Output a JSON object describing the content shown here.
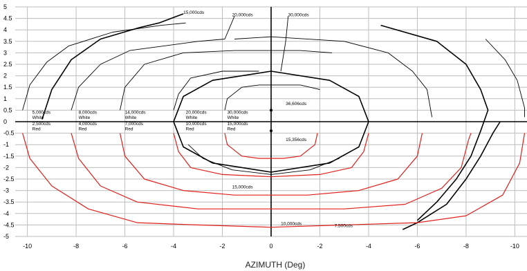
{
  "chart_data": {
    "type": "line",
    "xlabel": "AZIMUTH (Deg)",
    "xlim": [
      -10.5,
      10.5
    ],
    "ylim": [
      -5,
      5
    ],
    "x_ticks": [
      {
        "value": -10,
        "label": "-10"
      },
      {
        "value": -8,
        "label": "-8"
      },
      {
        "value": -6,
        "label": "-6"
      },
      {
        "value": -4,
        "label": "-4"
      },
      {
        "value": -2,
        "label": "-2"
      },
      {
        "value": 0,
        "label": "0"
      },
      {
        "value": 2,
        "label": "-2"
      },
      {
        "value": 4,
        "label": "-4"
      },
      {
        "value": 6,
        "label": "-6"
      },
      {
        "value": 8,
        "label": "-8"
      },
      {
        "value": 10,
        "label": "-10"
      }
    ],
    "y_ticks": [
      5,
      4.5,
      4,
      3.5,
      3,
      2.5,
      2,
      1.5,
      1,
      0.5,
      0,
      -0.5,
      -1,
      -1.5,
      -2,
      -2.5,
      -3,
      -3.5,
      -4,
      -4.5,
      -5
    ],
    "grid": true,
    "colors": {
      "white_series": "#000000",
      "red_series": "#e0201b",
      "grid": "#bdbdbd"
    },
    "series": [
      {
        "name": "5,000cds White",
        "color": "#000000",
        "points": [
          [
            -10.2,
            0.5
          ],
          [
            -9.9,
            1.6
          ],
          [
            -9.2,
            2.6
          ],
          [
            -8.3,
            3.3
          ],
          [
            -6.5,
            3.9
          ],
          [
            -4.5,
            4.2
          ],
          [
            -3.5,
            4.3
          ]
        ]
      },
      {
        "name": "15,000cds (white)",
        "color": "#000000",
        "points": [
          [
            -9.4,
            0.1
          ],
          [
            -9.0,
            1.4
          ],
          [
            -8.2,
            2.7
          ],
          [
            -7.0,
            3.6
          ],
          [
            -5.4,
            4.1
          ],
          [
            -4.6,
            4.3
          ],
          [
            -3.6,
            4.7
          ]
        ]
      },
      {
        "name": "8,000cds White",
        "color": "#000000",
        "points": [
          [
            -8.2,
            0.5
          ],
          [
            -7.9,
            1.5
          ],
          [
            -7.0,
            2.5
          ],
          [
            -5.8,
            3.1
          ],
          [
            -3.0,
            3.5
          ],
          [
            -1.9,
            3.6
          ],
          [
            -1.5,
            4.6
          ]
        ]
      },
      {
        "name": "14,000cds White",
        "color": "#000000",
        "points": [
          [
            -6.2,
            0.5
          ],
          [
            -6.0,
            1.5
          ],
          [
            -5.2,
            2.5
          ],
          [
            -3.6,
            3.0
          ],
          [
            -1.5,
            3.1
          ],
          [
            1.2,
            3.1
          ],
          [
            2.5,
            3.0
          ]
        ]
      },
      {
        "name": "20,000cds White",
        "color": "#000000",
        "points": [
          [
            -4.0,
            0.5
          ],
          [
            -3.8,
            1.2
          ],
          [
            -3.3,
            1.9
          ],
          [
            -2.0,
            2.2
          ],
          [
            -0.5,
            2.2
          ]
        ]
      },
      {
        "name": "30,000cds White",
        "color": "#000000",
        "points": [
          [
            -1.9,
            0.5
          ],
          [
            -1.8,
            1.0
          ],
          [
            -1.2,
            1.5
          ],
          [
            -0.5,
            1.6
          ],
          [
            0,
            1.6
          ],
          [
            1.2,
            1.6
          ],
          [
            2.0,
            1.4
          ]
        ]
      },
      {
        "name": "36,606cds",
        "color": "#000000",
        "points": [
          [
            -4.0,
            0
          ],
          [
            -3.6,
            1.1
          ],
          [
            -2.4,
            1.8
          ],
          [
            0,
            2.2
          ],
          [
            2.4,
            1.8
          ],
          [
            3.6,
            1.1
          ],
          [
            4.0,
            0
          ],
          [
            3.6,
            -1.1
          ],
          [
            2.4,
            -1.8
          ],
          [
            0,
            -2.2
          ],
          [
            -2.4,
            -1.8
          ],
          [
            -3.6,
            -1.1
          ],
          [
            -4.0,
            0
          ]
        ]
      },
      {
        "name": "30,000cds",
        "color": "#000000",
        "points": [
          [
            0.4,
            2.2
          ],
          [
            0.6,
            3.5
          ],
          [
            0.7,
            4.6
          ]
        ]
      },
      {
        "name": "20,000cds",
        "color": "#000000",
        "points": [
          [
            -1.5,
            3.6
          ],
          [
            0,
            3.7
          ],
          [
            3.0,
            3.5
          ],
          [
            4.8,
            3.0
          ],
          [
            5.8,
            2.2
          ],
          [
            6.4,
            1.4
          ],
          [
            6.6,
            0.2
          ]
        ]
      },
      {
        "name": "7,500cds",
        "color": "#000000",
        "points": [
          [
            8.8,
            3.6
          ],
          [
            9.6,
            2.7
          ],
          [
            10.1,
            1.8
          ],
          [
            10.4,
            0.6
          ],
          [
            10.4,
            0.2
          ]
        ]
      },
      {
        "name": "10,000cds",
        "color": "#000000",
        "points": [
          [
            4.5,
            4.2
          ],
          [
            6.8,
            3.5
          ],
          [
            8.0,
            2.5
          ],
          [
            8.6,
            1.4
          ],
          [
            8.9,
            0.5
          ],
          [
            8.6,
            -0.4
          ],
          [
            8.2,
            -1.5
          ],
          [
            7.6,
            -2.5
          ],
          [
            6.8,
            -3.5
          ],
          [
            6.0,
            -4.3
          ]
        ]
      },
      {
        "name": "7,500cds lower",
        "color": "#000000",
        "points": [
          [
            9.4,
            0
          ],
          [
            9.1,
            -0.5
          ],
          [
            8.6,
            -1.5
          ],
          [
            8.0,
            -2.5
          ],
          [
            7.2,
            -3.6
          ],
          [
            6.0,
            -4.4
          ],
          [
            5.4,
            -4.7
          ]
        ]
      },
      {
        "name": "15,000cds lower",
        "color": "#000000",
        "points": [
          [
            -3.4,
            -1.0
          ],
          [
            -2.8,
            -1.6
          ],
          [
            -1.6,
            -2.1
          ],
          [
            0,
            -2.3
          ],
          [
            1.6,
            -2.1
          ],
          [
            2.8,
            -1.6
          ]
        ]
      },
      {
        "name": "2,500cds Red",
        "color": "#e0201b",
        "points": [
          [
            -10.2,
            -0.5
          ],
          [
            -9.9,
            -1.6
          ],
          [
            -9.0,
            -2.8
          ],
          [
            -7.5,
            -3.8
          ],
          [
            -5.5,
            -4.4
          ],
          [
            -3.0,
            -4.5
          ],
          [
            0,
            -4.6
          ],
          [
            3.0,
            -4.5
          ],
          [
            6.0,
            -4.4
          ],
          [
            8.0,
            -4.1
          ],
          [
            9.5,
            -3.2
          ],
          [
            10.2,
            -1.8
          ],
          [
            10.4,
            -0.5
          ]
        ]
      },
      {
        "name": "4,000cds Red",
        "color": "#e0201b",
        "points": [
          [
            -8.2,
            -0.5
          ],
          [
            -7.9,
            -1.6
          ],
          [
            -7.0,
            -2.8
          ],
          [
            -5.5,
            -3.5
          ],
          [
            -3.0,
            -3.8
          ],
          [
            0,
            -3.8
          ],
          [
            3.0,
            -3.8
          ],
          [
            5.5,
            -3.6
          ],
          [
            7.0,
            -2.9
          ],
          [
            7.8,
            -2.0
          ],
          [
            8.1,
            -0.8
          ],
          [
            8.2,
            -0.5
          ]
        ]
      },
      {
        "name": "7,000cds Red",
        "color": "#e0201b",
        "points": [
          [
            -6.2,
            -0.5
          ],
          [
            -6.0,
            -1.5
          ],
          [
            -5.2,
            -2.5
          ],
          [
            -3.6,
            -3.0
          ],
          [
            -1.5,
            -3.2
          ],
          [
            1.5,
            -3.2
          ],
          [
            3.6,
            -3.0
          ],
          [
            5.2,
            -2.5
          ],
          [
            6.0,
            -1.5
          ],
          [
            6.2,
            -0.5
          ]
        ]
      },
      {
        "name": "10,000cds Red",
        "color": "#e0201b",
        "points": [
          [
            -4.0,
            -0.5
          ],
          [
            -3.8,
            -1.3
          ],
          [
            -3.3,
            -2.0
          ],
          [
            -2.0,
            -2.3
          ],
          [
            0,
            -2.4
          ],
          [
            2.0,
            -2.3
          ],
          [
            3.3,
            -2.0
          ],
          [
            3.8,
            -1.3
          ],
          [
            4.0,
            -0.5
          ]
        ]
      },
      {
        "name": "15,000cds Red",
        "color": "#e0201b",
        "points": [
          [
            -1.9,
            -0.5
          ],
          [
            -1.8,
            -1.0
          ],
          [
            -1.2,
            -1.5
          ],
          [
            -0.5,
            -1.6
          ],
          [
            0,
            -1.6
          ],
          [
            0.5,
            -1.6
          ],
          [
            1.2,
            -1.5
          ],
          [
            1.8,
            -1.0
          ],
          [
            1.9,
            -0.5
          ]
        ]
      }
    ],
    "labels": [
      {
        "text": "15,000cds",
        "x": -3.6,
        "y": 4.7
      },
      {
        "text": "20,000cds",
        "x": -1.6,
        "y": 4.6
      },
      {
        "text": "30,000cds",
        "x": 0.7,
        "y": 4.6
      },
      {
        "text": "5,000cds",
        "x": -9.8,
        "y": 0.35
      },
      {
        "text": "White",
        "x": -9.8,
        "y": 0.12
      },
      {
        "text": "8,000cds",
        "x": -7.9,
        "y": 0.35
      },
      {
        "text": "White",
        "x": -7.9,
        "y": 0.12
      },
      {
        "text": "14,000cds",
        "x": -6.0,
        "y": 0.35
      },
      {
        "text": "White",
        "x": -6.0,
        "y": 0.12
      },
      {
        "text": "20,000cds",
        "x": -3.5,
        "y": 0.35
      },
      {
        "text": "White",
        "x": -3.5,
        "y": 0.12
      },
      {
        "text": "30,000cds",
        "x": -1.8,
        "y": 0.35
      },
      {
        "text": "White",
        "x": -1.8,
        "y": 0.12
      },
      {
        "text": "36,606cds",
        "x": 0.6,
        "y": 0.72
      },
      {
        "text": "2,500cds",
        "x": -9.8,
        "y": -0.15
      },
      {
        "text": "Red",
        "x": -9.8,
        "y": -0.38
      },
      {
        "text": "4,000cds",
        "x": -7.9,
        "y": -0.15
      },
      {
        "text": "Red",
        "x": -7.9,
        "y": -0.38
      },
      {
        "text": "7,000cds",
        "x": -6.0,
        "y": -0.15
      },
      {
        "text": "Red",
        "x": -6.0,
        "y": -0.38
      },
      {
        "text": "10,000cds",
        "x": -3.5,
        "y": -0.15
      },
      {
        "text": "Red",
        "x": -3.5,
        "y": -0.38
      },
      {
        "text": "15,000cds",
        "x": -1.8,
        "y": -0.15
      },
      {
        "text": "Red",
        "x": -1.8,
        "y": -0.38
      },
      {
        "text": "15,356cds",
        "x": 0.6,
        "y": -0.85
      },
      {
        "text": "15,000cds",
        "x": -1.6,
        "y": -2.9
      },
      {
        "text": "10,000cds",
        "x": 0.4,
        "y": -4.5
      },
      {
        "text": "7,500cds",
        "x": 2.6,
        "y": -4.6
      }
    ]
  }
}
